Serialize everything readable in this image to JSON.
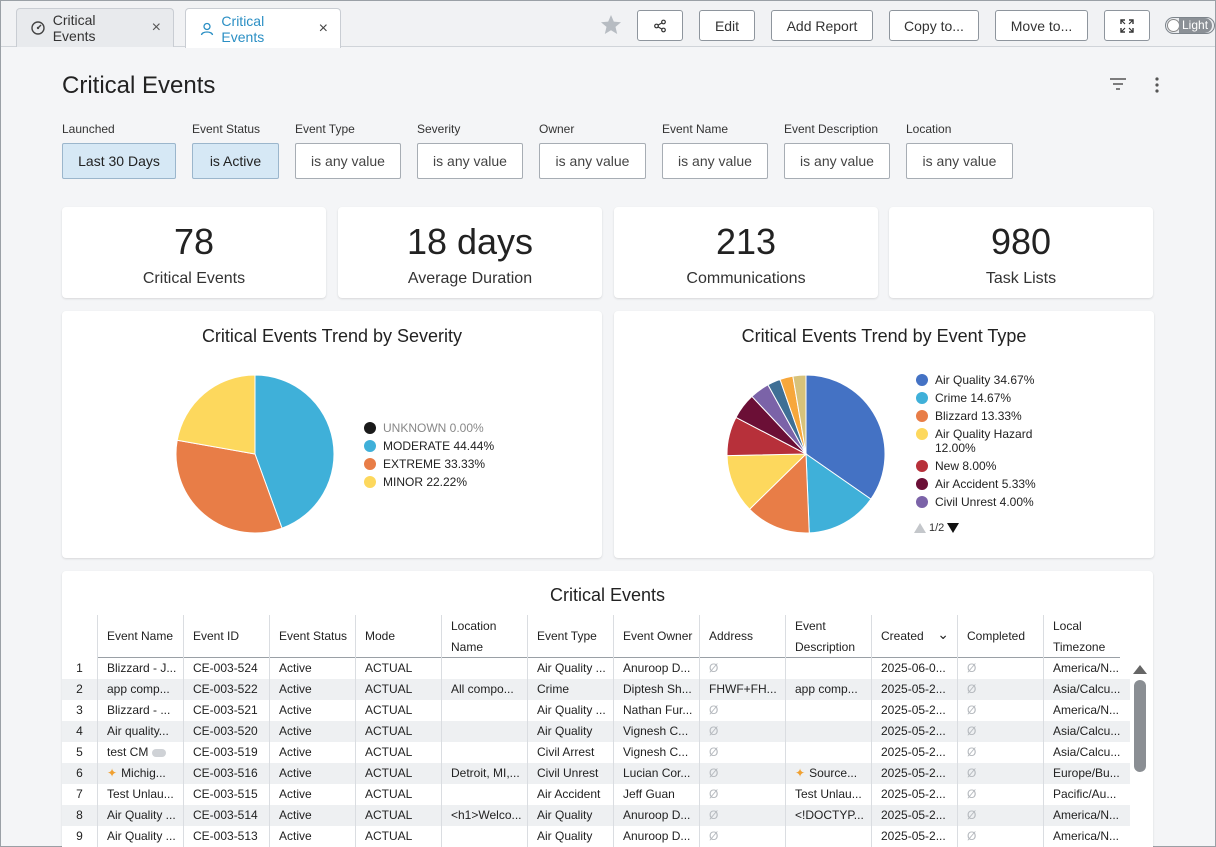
{
  "tabs": [
    {
      "label": "Critical Events",
      "icon": "dashboard-icon",
      "active": false
    },
    {
      "label": "Critical Events",
      "icon": "user-icon",
      "active": true
    }
  ],
  "toolbar": {
    "edit_label": "Edit",
    "add_report_label": "Add Report",
    "copy_label": "Copy to...",
    "move_label": "Move to...",
    "theme_label": "Light"
  },
  "page": {
    "title": "Critical Events"
  },
  "filters": [
    {
      "label": "Launched",
      "value": "Last 30 Days",
      "selected": true
    },
    {
      "label": "Event Status",
      "value": "is Active",
      "selected": true
    },
    {
      "label": "Event Type",
      "value": "is any value",
      "selected": false
    },
    {
      "label": "Severity",
      "value": "is any value",
      "selected": false
    },
    {
      "label": "Owner",
      "value": "is any value",
      "selected": false
    },
    {
      "label": "Event Name",
      "value": "is any value",
      "selected": false
    },
    {
      "label": "Event Description",
      "value": "is any value",
      "selected": false
    },
    {
      "label": "Location",
      "value": "is any value",
      "selected": false
    }
  ],
  "kpis": [
    {
      "value": "78",
      "label": "Critical Events"
    },
    {
      "value": "18 days",
      "label": "Average Duration"
    },
    {
      "value": "213",
      "label": "Communications"
    },
    {
      "value": "980",
      "label": "Task Lists"
    }
  ],
  "chart_data": [
    {
      "type": "pie",
      "title": "Critical Events Trend by Severity",
      "legend_position": "right",
      "slices": [
        {
          "label": "UNKNOWN",
          "pct_label": "0.00%",
          "value": 0.0,
          "color": "#1a1a1a"
        },
        {
          "label": "MODERATE",
          "pct_label": "44.44%",
          "value": 44.44,
          "color": "#3fb0d9"
        },
        {
          "label": "EXTREME",
          "pct_label": "33.33%",
          "value": 33.33,
          "color": "#e87d47"
        },
        {
          "label": "MINOR",
          "pct_label": "22.22%",
          "value": 22.22,
          "color": "#fdd85d"
        }
      ]
    },
    {
      "type": "pie",
      "title": "Critical Events Trend by Event Type",
      "legend_position": "right",
      "legend_page": "1/2",
      "slices": [
        {
          "label": "Air Quality",
          "pct_label": "34.67%",
          "value": 34.67,
          "color": "#4472c4"
        },
        {
          "label": "Crime",
          "pct_label": "14.67%",
          "value": 14.67,
          "color": "#3fb0d9"
        },
        {
          "label": "Blizzard",
          "pct_label": "13.33%",
          "value": 13.33,
          "color": "#e87d47"
        },
        {
          "label": "Air Quality Hazard",
          "pct_label": "12.00%",
          "value": 12.0,
          "color": "#fdd85d"
        },
        {
          "label": "New",
          "pct_label": "8.00%",
          "value": 8.0,
          "color": "#b7303a"
        },
        {
          "label": "Air Accident",
          "pct_label": "5.33%",
          "value": 5.33,
          "color": "#6b0f36"
        },
        {
          "label": "Civil Unrest",
          "pct_label": "4.00%",
          "value": 4.0,
          "color": "#7b63a8"
        },
        {
          "label": "",
          "pct_label": "",
          "value": 2.67,
          "color": "#3f6f95"
        },
        {
          "label": "",
          "pct_label": "",
          "value": 2.67,
          "color": "#f7a73b"
        },
        {
          "label": "",
          "pct_label": "",
          "value": 2.66,
          "color": "#d7c27a"
        }
      ]
    }
  ],
  "table": {
    "title": "Critical Events",
    "columns": [
      "Event Name",
      "Event ID",
      "Event Status",
      "Mode",
      "Location Name",
      "Event Type",
      "Event Owner",
      "Address",
      "Event Description",
      "Created",
      "Completed",
      "Local Timezone"
    ],
    "rows": [
      [
        "1",
        "Blizzard - J...",
        "CE-003-524",
        "Active",
        "ACTUAL",
        "",
        "Air Quality ...",
        "Anuroop D...",
        "Ø",
        "",
        "2025-06-0...",
        "Ø",
        "America/N..."
      ],
      [
        "2",
        "app comp...",
        "CE-003-522",
        "Active",
        "ACTUAL",
        "All compo...",
        "Crime",
        "Diptesh Sh...",
        "FHWF+FH...",
        "app comp...",
        "2025-05-2...",
        "Ø",
        "Asia/Calcu..."
      ],
      [
        "3",
        "Blizzard - ...",
        "CE-003-521",
        "Active",
        "ACTUAL",
        "",
        "Air Quality ...",
        "Nathan Fur...",
        "Ø",
        "",
        "2025-05-2...",
        "Ø",
        "America/N..."
      ],
      [
        "4",
        "Air quality...",
        "CE-003-520",
        "Active",
        "ACTUAL",
        "",
        "Air Quality",
        "Vignesh C...",
        "Ø",
        "",
        "2025-05-2...",
        "Ø",
        "Asia/Calcu..."
      ],
      [
        "5",
        "test CM",
        "CE-003-519",
        "Active",
        "ACTUAL",
        "",
        "Civil Arrest",
        "Vignesh C...",
        "Ø",
        "",
        "2025-05-2...",
        "Ø",
        "Asia/Calcu..."
      ],
      [
        "6",
        "Michig...",
        "CE-003-516",
        "Active",
        "ACTUAL",
        "Detroit, MI,...",
        "Civil Unrest",
        "Lucian Cor...",
        "Ø",
        "Source...",
        "2025-05-2...",
        "Ø",
        "Europe/Bu..."
      ],
      [
        "7",
        "Test Unlau...",
        "CE-003-515",
        "Active",
        "ACTUAL",
        "",
        "Air Accident",
        "Jeff Guan",
        "Ø",
        "Test Unlau...",
        "2025-05-2...",
        "Ø",
        "Pacific/Au..."
      ],
      [
        "8",
        "Air Quality ...",
        "CE-003-514",
        "Active",
        "ACTUAL",
        "<h1>Welco...",
        "Air Quality",
        "Anuroop D...",
        "Ø",
        "<!DOCTYP...",
        "2025-05-2...",
        "Ø",
        "America/N..."
      ],
      [
        "9",
        "Air Quality ...",
        "CE-003-513",
        "Active",
        "ACTUAL",
        "",
        "Air Quality",
        "Anuroop D...",
        "Ø",
        "",
        "2025-05-2...",
        "Ø",
        "America/N..."
      ]
    ]
  }
}
